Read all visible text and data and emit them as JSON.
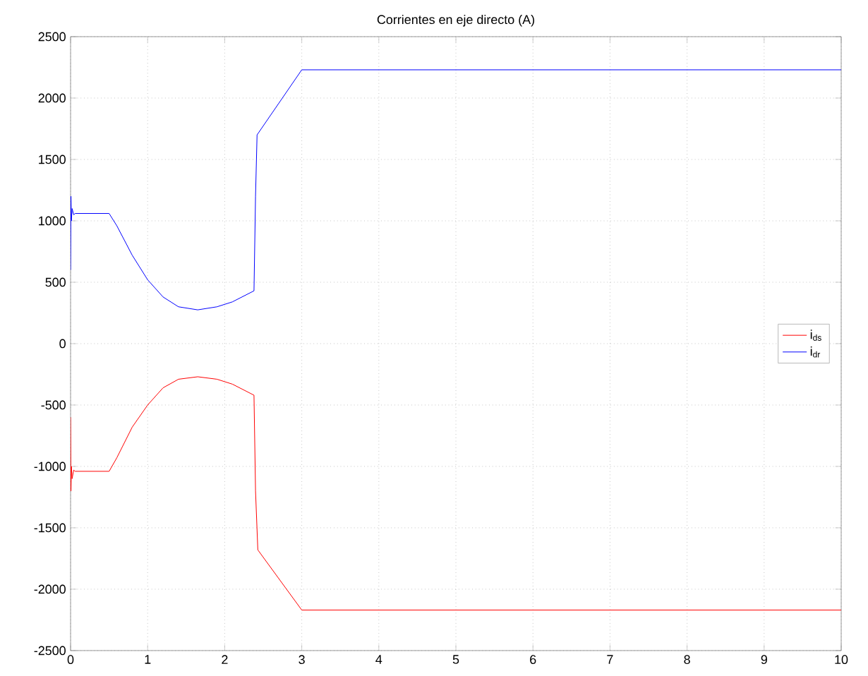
{
  "chart_data": {
    "type": "line",
    "title": "Corrientes en eje directo (A)",
    "xlim": [
      0,
      10
    ],
    "ylim": [
      -2500,
      2500
    ],
    "xticks": [
      0,
      1,
      2,
      3,
      4,
      5,
      6,
      7,
      8,
      9,
      10
    ],
    "yticks": [
      -2500,
      -2000,
      -1500,
      -1000,
      -500,
      0,
      500,
      1000,
      1500,
      2000,
      2500
    ],
    "grid": true,
    "legend": "right",
    "line_style": "solid",
    "series": [
      {
        "name": "i$_{ds}$",
        "color": "#ff0000",
        "x": [
          0,
          0.005,
          0.01,
          0.02,
          0.04,
          0.06,
          0.5,
          0.6,
          0.8,
          1.0,
          1.2,
          1.4,
          1.65,
          1.9,
          2.1,
          2.38,
          2.4,
          2.43,
          3.0,
          10
        ],
        "values": [
          -600,
          -1200,
          -1000,
          -1100,
          -1030,
          -1040,
          -1040,
          -930,
          -680,
          -500,
          -360,
          -290,
          -270,
          -290,
          -330,
          -420,
          -1200,
          -1680,
          -2170,
          -2170
        ]
      },
      {
        "name": "i$_{dr}$",
        "color": "#0000ff",
        "x": [
          0,
          0.005,
          0.01,
          0.02,
          0.04,
          0.06,
          0.5,
          0.6,
          0.8,
          1.0,
          1.2,
          1.4,
          1.65,
          1.9,
          2.1,
          2.38,
          2.4,
          2.42,
          3.0,
          10
        ],
        "values": [
          600,
          1200,
          1000,
          1100,
          1050,
          1060,
          1060,
          960,
          720,
          520,
          380,
          300,
          275,
          300,
          340,
          430,
          1200,
          1700,
          2230,
          2230
        ]
      }
    ]
  }
}
